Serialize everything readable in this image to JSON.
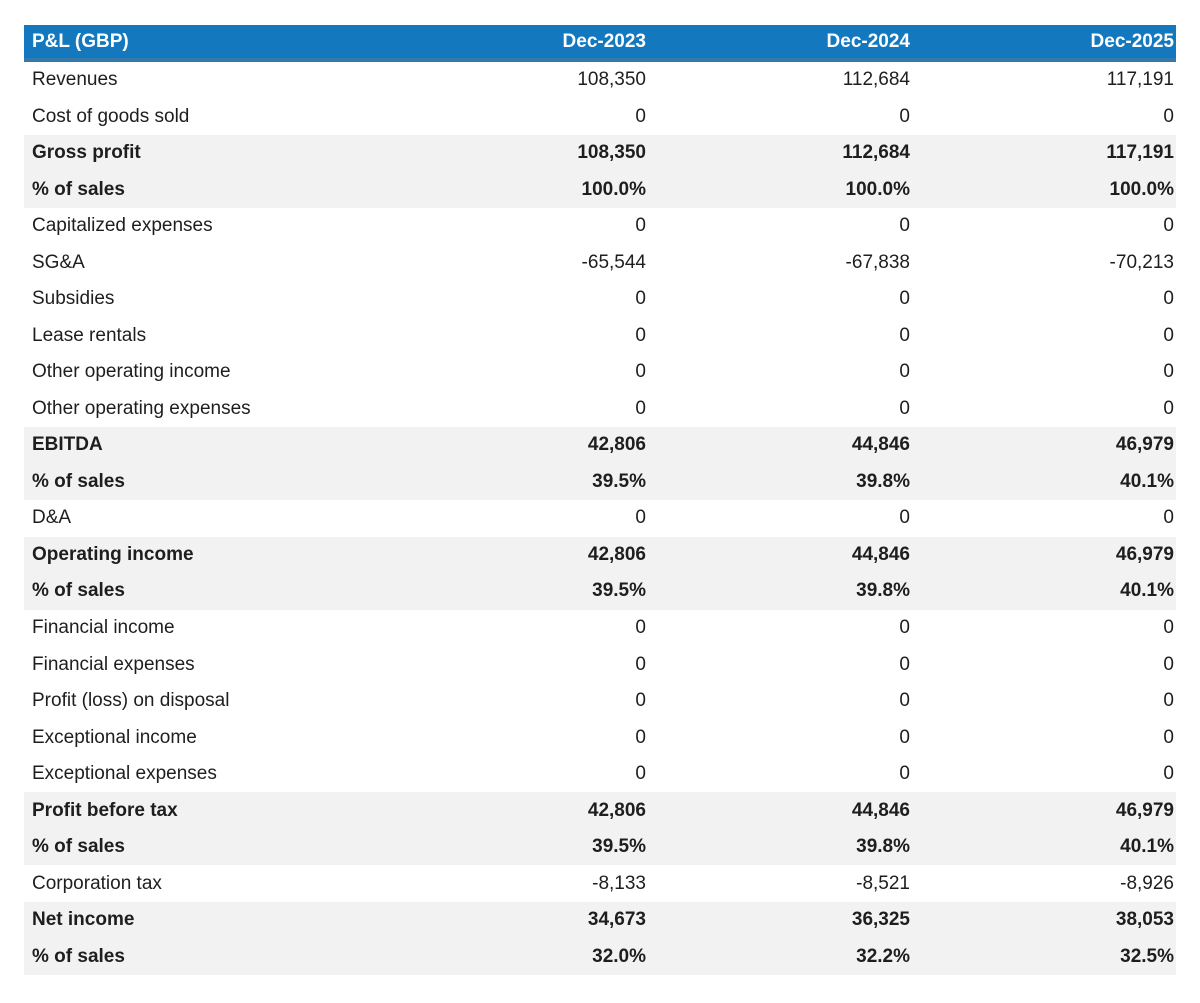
{
  "chart_data": {
    "type": "table",
    "title": "P&L (GBP)",
    "columns": [
      "Dec-2023",
      "Dec-2024",
      "Dec-2025"
    ],
    "rows": [
      {
        "label": "Revenues",
        "values": [
          "108,350",
          "112,684",
          "117,191"
        ],
        "emphasis": false
      },
      {
        "label": "Cost of goods sold",
        "values": [
          "0",
          "0",
          "0"
        ],
        "emphasis": false
      },
      {
        "label": "Gross profit",
        "values": [
          "108,350",
          "112,684",
          "117,191"
        ],
        "emphasis": true
      },
      {
        "label": "% of sales",
        "values": [
          "100.0%",
          "100.0%",
          "100.0%"
        ],
        "emphasis": true
      },
      {
        "label": "Capitalized expenses",
        "values": [
          "0",
          "0",
          "0"
        ],
        "emphasis": false
      },
      {
        "label": "SG&A",
        "values": [
          "-65,544",
          "-67,838",
          "-70,213"
        ],
        "emphasis": false
      },
      {
        "label": "Subsidies",
        "values": [
          "0",
          "0",
          "0"
        ],
        "emphasis": false
      },
      {
        "label": "Lease rentals",
        "values": [
          "0",
          "0",
          "0"
        ],
        "emphasis": false
      },
      {
        "label": "Other operating income",
        "values": [
          "0",
          "0",
          "0"
        ],
        "emphasis": false
      },
      {
        "label": "Other operating expenses",
        "values": [
          "0",
          "0",
          "0"
        ],
        "emphasis": false
      },
      {
        "label": "EBITDA",
        "values": [
          "42,806",
          "44,846",
          "46,979"
        ],
        "emphasis": true
      },
      {
        "label": "% of sales",
        "values": [
          "39.5%",
          "39.8%",
          "40.1%"
        ],
        "emphasis": true
      },
      {
        "label": "D&A",
        "values": [
          "0",
          "0",
          "0"
        ],
        "emphasis": false
      },
      {
        "label": "Operating income",
        "values": [
          "42,806",
          "44,846",
          "46,979"
        ],
        "emphasis": true
      },
      {
        "label": "% of sales",
        "values": [
          "39.5%",
          "39.8%",
          "40.1%"
        ],
        "emphasis": true
      },
      {
        "label": "Financial income",
        "values": [
          "0",
          "0",
          "0"
        ],
        "emphasis": false
      },
      {
        "label": "Financial expenses",
        "values": [
          "0",
          "0",
          "0"
        ],
        "emphasis": false
      },
      {
        "label": "Profit (loss) on disposal",
        "values": [
          "0",
          "0",
          "0"
        ],
        "emphasis": false
      },
      {
        "label": "Exceptional income",
        "values": [
          "0",
          "0",
          "0"
        ],
        "emphasis": false
      },
      {
        "label": "Exceptional expenses",
        "values": [
          "0",
          "0",
          "0"
        ],
        "emphasis": false
      },
      {
        "label": "Profit before tax",
        "values": [
          "42,806",
          "44,846",
          "46,979"
        ],
        "emphasis": true
      },
      {
        "label": "% of sales",
        "values": [
          "39.5%",
          "39.8%",
          "40.1%"
        ],
        "emphasis": true
      },
      {
        "label": "Corporation tax",
        "values": [
          "-8,133",
          "-8,521",
          "-8,926"
        ],
        "emphasis": false
      },
      {
        "label": "Net income",
        "values": [
          "34,673",
          "36,325",
          "38,053"
        ],
        "emphasis": true
      },
      {
        "label": "% of sales",
        "values": [
          "32.0%",
          "32.2%",
          "32.5%"
        ],
        "emphasis": true
      }
    ]
  },
  "colors": {
    "header_bg": "#1478be",
    "header_underline": "#3579a8",
    "header_text": "#ffffff",
    "subtotal_bg": "#f2f2f2",
    "text_color": "#1e1e1e"
  }
}
